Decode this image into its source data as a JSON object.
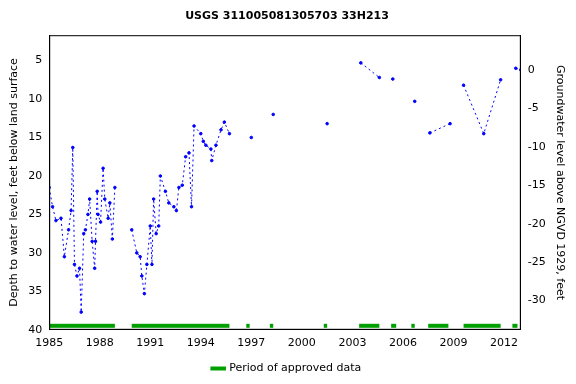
{
  "chart_data": {
    "type": "line",
    "title": "USGS 311005081305703 33H213",
    "y_label": "Depth to water level, feet below land surface",
    "y2_label": "Groundwater level above NGVD 1929, feet",
    "x": [
      1985.0,
      1985.2,
      1985.4,
      1985.7,
      1985.9,
      1986.15,
      1986.3,
      1986.4,
      1986.5,
      1986.65,
      1986.8,
      1986.9,
      1987.05,
      1987.15,
      1987.3,
      1987.4,
      1987.55,
      1987.7,
      1987.75,
      1987.85,
      1987.9,
      1988.05,
      1988.2,
      1988.3,
      1988.5,
      1988.6,
      1988.75,
      1988.9,
      null,
      1989.9,
      1990.2,
      1990.4,
      1990.5,
      1990.65,
      1990.8,
      1991.0,
      1991.1,
      1991.2,
      1991.35,
      1991.5,
      1991.6,
      1991.9,
      1992.1,
      1992.4,
      1992.55,
      1992.7,
      1992.9,
      1993.1,
      1993.3,
      1993.45,
      1993.6,
      1994.0,
      1994.15,
      1994.3,
      1994.6,
      1994.65,
      1994.9,
      1995.2,
      1995.4,
      1995.7,
      null,
      1997.0,
      null,
      1998.3,
      null,
      2001.5,
      null,
      2003.5,
      2004.6,
      null,
      2005.4,
      null,
      2006.7,
      null,
      2007.6,
      2008.8,
      null,
      2009.6,
      2010.8,
      2011.8,
      null,
      2012.7,
      2013.0
    ],
    "values": [
      21.5,
      24,
      25.8,
      25.5,
      30.5,
      27,
      24.5,
      16.3,
      31.5,
      33,
      32,
      37.7,
      27.5,
      27,
      25,
      23,
      28.5,
      32,
      28.5,
      22,
      25,
      26,
      19,
      23,
      25.5,
      23.5,
      28.2,
      21.5,
      null,
      27,
      30,
      30.5,
      33,
      35.3,
      31.5,
      26.5,
      31.5,
      23,
      27.5,
      26.5,
      20,
      22,
      23.5,
      24,
      24.5,
      21.5,
      21.2,
      17.5,
      17,
      24,
      13.5,
      14.5,
      15.5,
      16,
      16.5,
      18,
      16,
      14,
      13,
      14.5,
      null,
      15,
      null,
      12,
      null,
      13.2,
      null,
      5.3,
      7.2,
      null,
      7.4,
      null,
      10.3,
      null,
      14.4,
      13.2,
      null,
      8.2,
      14.5,
      7.5,
      null,
      6.0,
      6.2
    ],
    "color": "#0000ff",
    "marker": "circle",
    "line_style": "dotted",
    "approved_periods": {
      "label": "Period of approved data",
      "color": "#00a000",
      "ranges": [
        [
          1985.0,
          1988.9
        ],
        [
          1989.9,
          1995.7
        ],
        [
          1996.7,
          1996.9
        ],
        [
          1998.1,
          1998.3
        ],
        [
          2001.3,
          2001.5
        ],
        [
          2003.4,
          2004.6
        ],
        [
          2005.3,
          2005.6
        ],
        [
          2006.5,
          2006.7
        ],
        [
          2007.5,
          2008.7
        ],
        [
          2009.6,
          2011.8
        ],
        [
          2012.5,
          2012.8
        ]
      ]
    },
    "xlim": [
      1985,
      2013
    ],
    "xticks": [
      1985,
      1988,
      1991,
      1994,
      1997,
      2000,
      2003,
      2006,
      2009,
      2012
    ],
    "ylim": [
      1.7,
      40
    ],
    "yticks": [
      5,
      10,
      15,
      20,
      25,
      30,
      35,
      40
    ],
    "y2lim": [
      -33.8,
      4.5
    ],
    "y2ticks": [
      0,
      -5,
      -10,
      -15,
      -20,
      -25,
      -30
    ],
    "grid": false,
    "legend": "bottom"
  }
}
